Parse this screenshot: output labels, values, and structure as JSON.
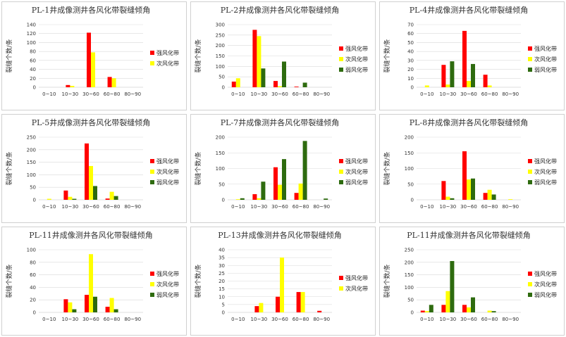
{
  "colors": {
    "strong": "#ff0000",
    "secondary": "#ffff00",
    "weak": "#2e6b0f"
  },
  "chart_data": [
    {
      "type": "bar",
      "title": "PL-1井成像测井各风化带裂缝倾角",
      "ylabel": "裂缝个数/条",
      "categories": [
        "0~10",
        "10~30",
        "30~60",
        "60~80",
        "80~90"
      ],
      "ylim": [
        0,
        140
      ],
      "yticks": [
        0,
        20,
        40,
        60,
        80,
        100,
        120,
        140
      ],
      "series": [
        {
          "name": "强风化带",
          "color_key": "strong",
          "values": [
            0,
            5,
            122,
            23,
            0
          ]
        },
        {
          "name": "次风化带",
          "color_key": "secondary",
          "values": [
            0,
            3,
            78,
            20,
            0
          ]
        }
      ]
    },
    {
      "type": "bar",
      "title": "PL-2井成像测井各风化带裂缝倾角",
      "ylabel": "裂缝个数/条",
      "categories": [
        "0~10",
        "10~30",
        "30~60",
        "60~80",
        "80~90"
      ],
      "ylim": [
        0,
        300
      ],
      "yticks": [
        0,
        50,
        100,
        150,
        200,
        250,
        300
      ],
      "series": [
        {
          "name": "强风化带",
          "color_key": "strong",
          "values": [
            27,
            275,
            30,
            3,
            0
          ]
        },
        {
          "name": "次风化带",
          "color_key": "secondary",
          "values": [
            43,
            245,
            5,
            0,
            0
          ]
        },
        {
          "name": "弱风化带",
          "color_key": "weak",
          "values": [
            0,
            90,
            123,
            22,
            0
          ]
        }
      ]
    },
    {
      "type": "bar",
      "title": "PL-4井成像测井各风化带裂缝倾角",
      "ylabel": "裂缝个数/条",
      "categories": [
        "0~10",
        "10~30",
        "30~60",
        "60~80",
        "80~90"
      ],
      "ylim": [
        0,
        70
      ],
      "yticks": [
        0,
        10,
        20,
        30,
        40,
        50,
        60,
        70
      ],
      "series": [
        {
          "name": "强风化带",
          "color_key": "strong",
          "values": [
            0,
            25,
            63,
            14,
            0
          ]
        },
        {
          "name": "次风化带",
          "color_key": "secondary",
          "values": [
            2,
            3,
            7,
            2,
            0
          ]
        },
        {
          "name": "弱风化带",
          "color_key": "weak",
          "values": [
            0,
            29,
            26,
            0,
            0
          ]
        }
      ]
    },
    {
      "type": "bar",
      "title": "PL-5井成像测井各风化带裂缝倾角",
      "ylabel": "裂缝个数/条",
      "categories": [
        "0~10",
        "10~30",
        "30~60",
        "60~80",
        "80~90"
      ],
      "ylim": [
        0,
        250
      ],
      "yticks": [
        0,
        50,
        100,
        150,
        200,
        250
      ],
      "series": [
        {
          "name": "强风化带",
          "color_key": "strong",
          "values": [
            0,
            37,
            225,
            5,
            0
          ]
        },
        {
          "name": "次风化带",
          "color_key": "secondary",
          "values": [
            4,
            12,
            135,
            32,
            0
          ]
        },
        {
          "name": "弱风化带",
          "color_key": "weak",
          "values": [
            0,
            4,
            55,
            15,
            0
          ]
        }
      ]
    },
    {
      "type": "bar",
      "title": "PL-7井成像测井各风化带裂缝倾角",
      "ylabel": "裂缝个数/条",
      "categories": [
        "0~10",
        "10~30",
        "30~60",
        "60~80",
        "80~90"
      ],
      "ylim": [
        0,
        200
      ],
      "yticks": [
        0,
        50,
        100,
        150,
        200
      ],
      "series": [
        {
          "name": "强风化带",
          "color_key": "strong",
          "values": [
            0,
            18,
            104,
            22,
            0
          ]
        },
        {
          "name": "次风化带",
          "color_key": "secondary",
          "values": [
            2,
            5,
            48,
            52,
            0
          ]
        },
        {
          "name": "弱风化带",
          "color_key": "weak",
          "values": [
            5,
            58,
            130,
            188,
            4
          ]
        }
      ]
    },
    {
      "type": "bar",
      "title": "PL-8井成像测井各风化带裂缝倾角",
      "ylabel": "裂缝个数/条",
      "categories": [
        "0~10",
        "10~30",
        "30~60",
        "60~80",
        "80~90"
      ],
      "ylim": [
        0,
        200
      ],
      "yticks": [
        0,
        50,
        100,
        150,
        200
      ],
      "series": [
        {
          "name": "强风化带",
          "color_key": "strong",
          "values": [
            0,
            60,
            155,
            22,
            0
          ]
        },
        {
          "name": "次风化带",
          "color_key": "secondary",
          "values": [
            0,
            10,
            65,
            32,
            2
          ]
        },
        {
          "name": "弱风化带",
          "color_key": "weak",
          "values": [
            0,
            5,
            68,
            17,
            0
          ]
        }
      ]
    },
    {
      "type": "bar",
      "title": "PL-11井成像测井各风化带裂缝倾角",
      "ylabel": "裂缝个数/条",
      "categories": [
        "0~10",
        "10~30",
        "30~60",
        "60~80",
        "80~90"
      ],
      "ylim": [
        0,
        100
      ],
      "yticks": [
        0,
        20,
        40,
        60,
        80,
        100
      ],
      "series": [
        {
          "name": "强风化带",
          "color_key": "strong",
          "values": [
            0,
            21,
            28,
            9,
            0
          ]
        },
        {
          "name": "次风化带",
          "color_key": "secondary",
          "values": [
            0,
            16,
            93,
            23,
            0
          ]
        },
        {
          "name": "弱风化带",
          "color_key": "weak",
          "values": [
            0,
            5,
            25,
            5,
            0
          ]
        }
      ]
    },
    {
      "type": "bar",
      "title": "PL-13井成像测井各风化带裂缝倾角",
      "ylabel": "裂缝个数/条",
      "categories": [
        "0~10",
        "10~30",
        "30~60",
        "60~80",
        "80~90"
      ],
      "ylim": [
        0,
        40
      ],
      "yticks": [
        0,
        5,
        10,
        15,
        20,
        25,
        30,
        35,
        40
      ],
      "series": [
        {
          "name": "强风化带",
          "color_key": "strong",
          "values": [
            0,
            4,
            10,
            13,
            1
          ]
        },
        {
          "name": "次风化带",
          "color_key": "secondary",
          "values": [
            0,
            6,
            35,
            13,
            0
          ]
        }
      ]
    },
    {
      "type": "bar",
      "title": "PL-11井成像测井各风化带裂缝倾角",
      "ylabel": "裂缝个数/条",
      "categories": [
        "0~10",
        "10~30",
        "30~60",
        "60~80",
        "80~90"
      ],
      "ylim": [
        0,
        250
      ],
      "yticks": [
        0,
        50,
        100,
        150,
        200,
        250
      ],
      "series": [
        {
          "name": "强风化带",
          "color_key": "strong",
          "values": [
            7,
            30,
            30,
            0,
            0
          ]
        },
        {
          "name": "次风化带",
          "color_key": "secondary",
          "values": [
            5,
            85,
            20,
            7,
            0
          ]
        },
        {
          "name": "弱风化带",
          "color_key": "weak",
          "values": [
            30,
            205,
            60,
            5,
            0
          ]
        }
      ]
    }
  ]
}
